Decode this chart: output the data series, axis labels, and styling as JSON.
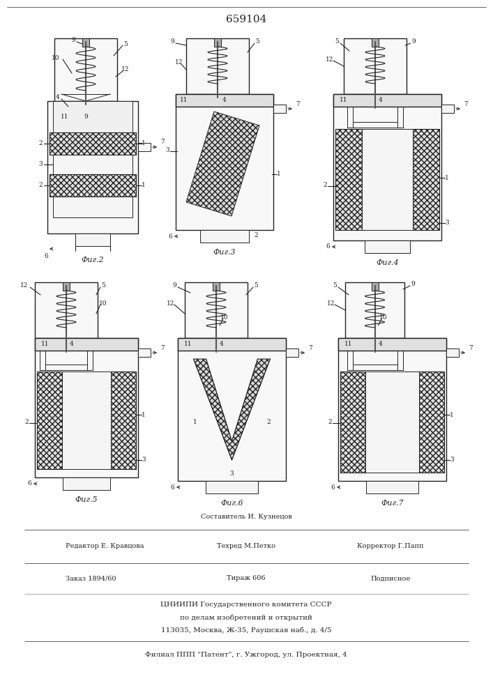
{
  "patent_number": "659104",
  "background_color": "#ffffff",
  "line_color": "#222222",
  "fig_labels": [
    "Фиг.2",
    "Фиг.3",
    "Фиг.4",
    "Фиг.5",
    "Фиг.6",
    "Фиг.7"
  ],
  "footer_text_1": "Составитель И. Кузнецов",
  "footer_text_2": "Редактор Е. Кравцова",
  "footer_text_2b": "Техред М.Петко",
  "footer_text_2c": "Корректор Г.Папп",
  "footer_text_3a": "Заказ 1894/60",
  "footer_text_3b": "Тираж 606",
  "footer_text_3c": "Подписное",
  "footer_text_4": "ЦНИИПИ Государственного комитета СССР",
  "footer_text_5": "по делам изобретений и открытий",
  "footer_text_6": "113035, Москва, Ж-35, Раушская наб., д. 4/5",
  "footer_text_7": "Филиал ППП \"Патент\", г. Ужгород, ул. Проектная, 4"
}
